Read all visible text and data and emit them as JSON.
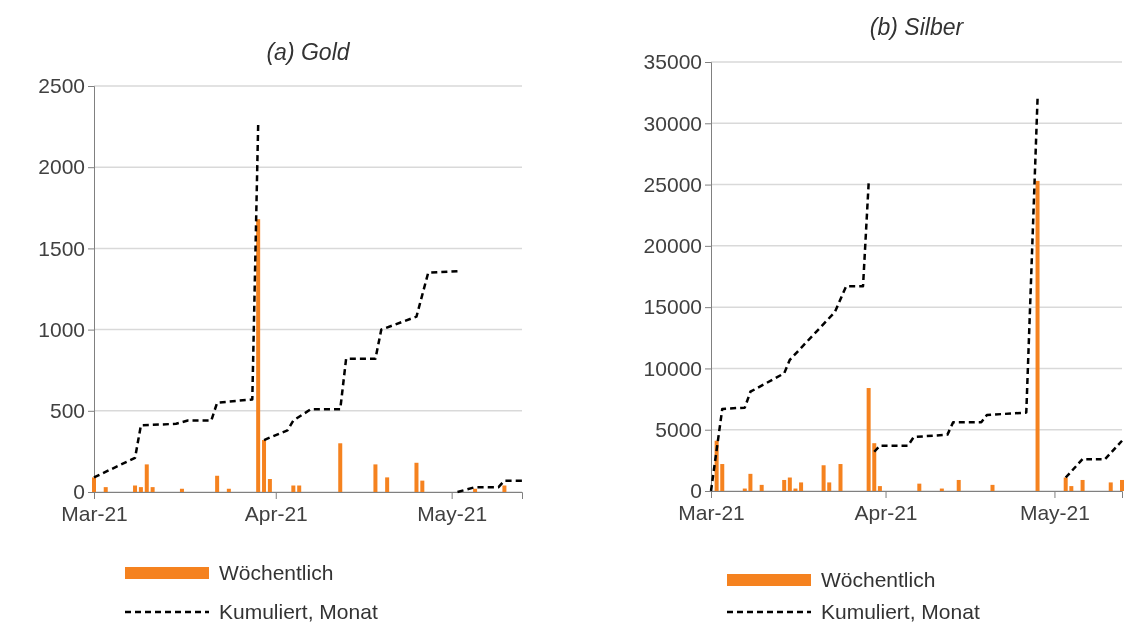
{
  "chart_data": [
    {
      "type": "bar",
      "title": "(a) Gold",
      "xlim": [
        "2021-03-01",
        "2021-05-13"
      ],
      "xticks": [
        {
          "value": "2021-03-01",
          "label": "Mar-21"
        },
        {
          "value": "2021-04-01",
          "label": "Apr-21"
        },
        {
          "value": "2021-05-01",
          "label": "May-21"
        }
      ],
      "ylim": [
        0,
        2500
      ],
      "yticks": [
        0,
        500,
        1000,
        1500,
        2000,
        2500
      ],
      "grid": "y",
      "legend": "bottom",
      "series": [
        {
          "name": "Wöchentlich",
          "color": "#f5821f",
          "x": [
            "2021-03-01",
            "2021-03-03",
            "2021-03-08",
            "2021-03-09",
            "2021-03-10",
            "2021-03-11",
            "2021-03-16",
            "2021-03-22",
            "2021-03-24",
            "2021-03-29",
            "2021-03-30",
            "2021-03-31",
            "2021-04-04",
            "2021-04-05",
            "2021-04-12",
            "2021-04-18",
            "2021-04-20",
            "2021-04-25",
            "2021-04-26",
            "2021-05-05",
            "2021-05-10"
          ],
          "values": [
            90,
            30,
            40,
            30,
            170,
            30,
            20,
            100,
            20,
            1680,
            320,
            80,
            40,
            40,
            300,
            170,
            90,
            180,
            70,
            20,
            40
          ]
        },
        {
          "name": "Kumuliert, Monat",
          "type": "line",
          "color": "#000000",
          "line_style": "dashed",
          "x": [
            "2021-03-01",
            "2021-03-08",
            "2021-03-09",
            "2021-03-15",
            "2021-03-17",
            "2021-03-21",
            "2021-03-22",
            "2021-03-28",
            "2021-03-29"
          ],
          "values": [
            90,
            210,
            410,
            420,
            440,
            440,
            550,
            570,
            2260
          ]
        },
        {
          "type": "line",
          "color": "#000000",
          "line_style": "dashed",
          "x": [
            "2021-03-30",
            "2021-04-03",
            "2021-04-04",
            "2021-04-07",
            "2021-04-12",
            "2021-04-13",
            "2021-04-18",
            "2021-04-19",
            "2021-04-25",
            "2021-04-27",
            "2021-05-02"
          ],
          "values": [
            320,
            380,
            440,
            510,
            510,
            820,
            820,
            1000,
            1080,
            1350,
            1360
          ]
        },
        {
          "type": "line",
          "color": "#000000",
          "line_style": "dashed",
          "x": [
            "2021-05-02",
            "2021-05-05",
            "2021-05-09",
            "2021-05-10",
            "2021-05-13"
          ],
          "values": [
            0,
            30,
            30,
            70,
            70
          ]
        }
      ]
    },
    {
      "type": "bar",
      "title": "(b) Silber",
      "xlim": [
        "2021-03-01",
        "2021-05-13"
      ],
      "xticks": [
        {
          "value": "2021-03-01",
          "label": "Mar-21"
        },
        {
          "value": "2021-04-01",
          "label": "Apr-21"
        },
        {
          "value": "2021-05-01",
          "label": "May-21"
        }
      ],
      "ylim": [
        0,
        35000
      ],
      "yticks": [
        0,
        5000,
        10000,
        15000,
        20000,
        25000,
        30000,
        35000
      ],
      "grid": "y",
      "legend": "bottom",
      "series": [
        {
          "name": "Wöchentlich",
          "color": "#f5821f",
          "x": [
            "2021-03-02",
            "2021-03-03",
            "2021-03-07",
            "2021-03-08",
            "2021-03-10",
            "2021-03-14",
            "2021-03-15",
            "2021-03-16",
            "2021-03-17",
            "2021-03-21",
            "2021-03-22",
            "2021-03-24",
            "2021-03-29",
            "2021-03-30",
            "2021-03-31",
            "2021-04-07",
            "2021-04-11",
            "2021-04-14",
            "2021-04-20",
            "2021-04-28",
            "2021-05-03",
            "2021-05-04",
            "2021-05-06",
            "2021-05-11",
            "2021-05-13"
          ],
          "values": [
            4100,
            2200,
            200,
            1400,
            500,
            900,
            1100,
            200,
            700,
            2100,
            700,
            2200,
            8400,
            3900,
            400,
            600,
            200,
            900,
            500,
            25300,
            1100,
            400,
            900,
            700,
            900
          ]
        },
        {
          "name": "Kumuliert, Monat",
          "type": "line",
          "color": "#000000",
          "line_style": "dashed",
          "x": [
            "2021-03-01",
            "2021-03-03",
            "2021-03-07",
            "2021-03-08",
            "2021-03-14",
            "2021-03-15",
            "2021-03-23",
            "2021-03-25",
            "2021-03-28",
            "2021-03-29"
          ],
          "values": [
            0,
            6700,
            6800,
            8100,
            9600,
            10700,
            14600,
            16700,
            16700,
            25100
          ]
        },
        {
          "type": "line",
          "color": "#000000",
          "line_style": "dashed",
          "x": [
            "2021-03-30",
            "2021-03-31",
            "2021-04-05",
            "2021-04-06",
            "2021-04-12",
            "2021-04-13",
            "2021-04-18",
            "2021-04-19",
            "2021-04-26",
            "2021-04-28"
          ],
          "values": [
            3200,
            3700,
            3700,
            4400,
            4600,
            5600,
            5600,
            6200,
            6400,
            32000
          ]
        },
        {
          "type": "line",
          "color": "#000000",
          "line_style": "dashed",
          "x": [
            "2021-05-03",
            "2021-05-06",
            "2021-05-10",
            "2021-05-13"
          ],
          "values": [
            1100,
            2600,
            2600,
            4100
          ]
        }
      ]
    }
  ]
}
